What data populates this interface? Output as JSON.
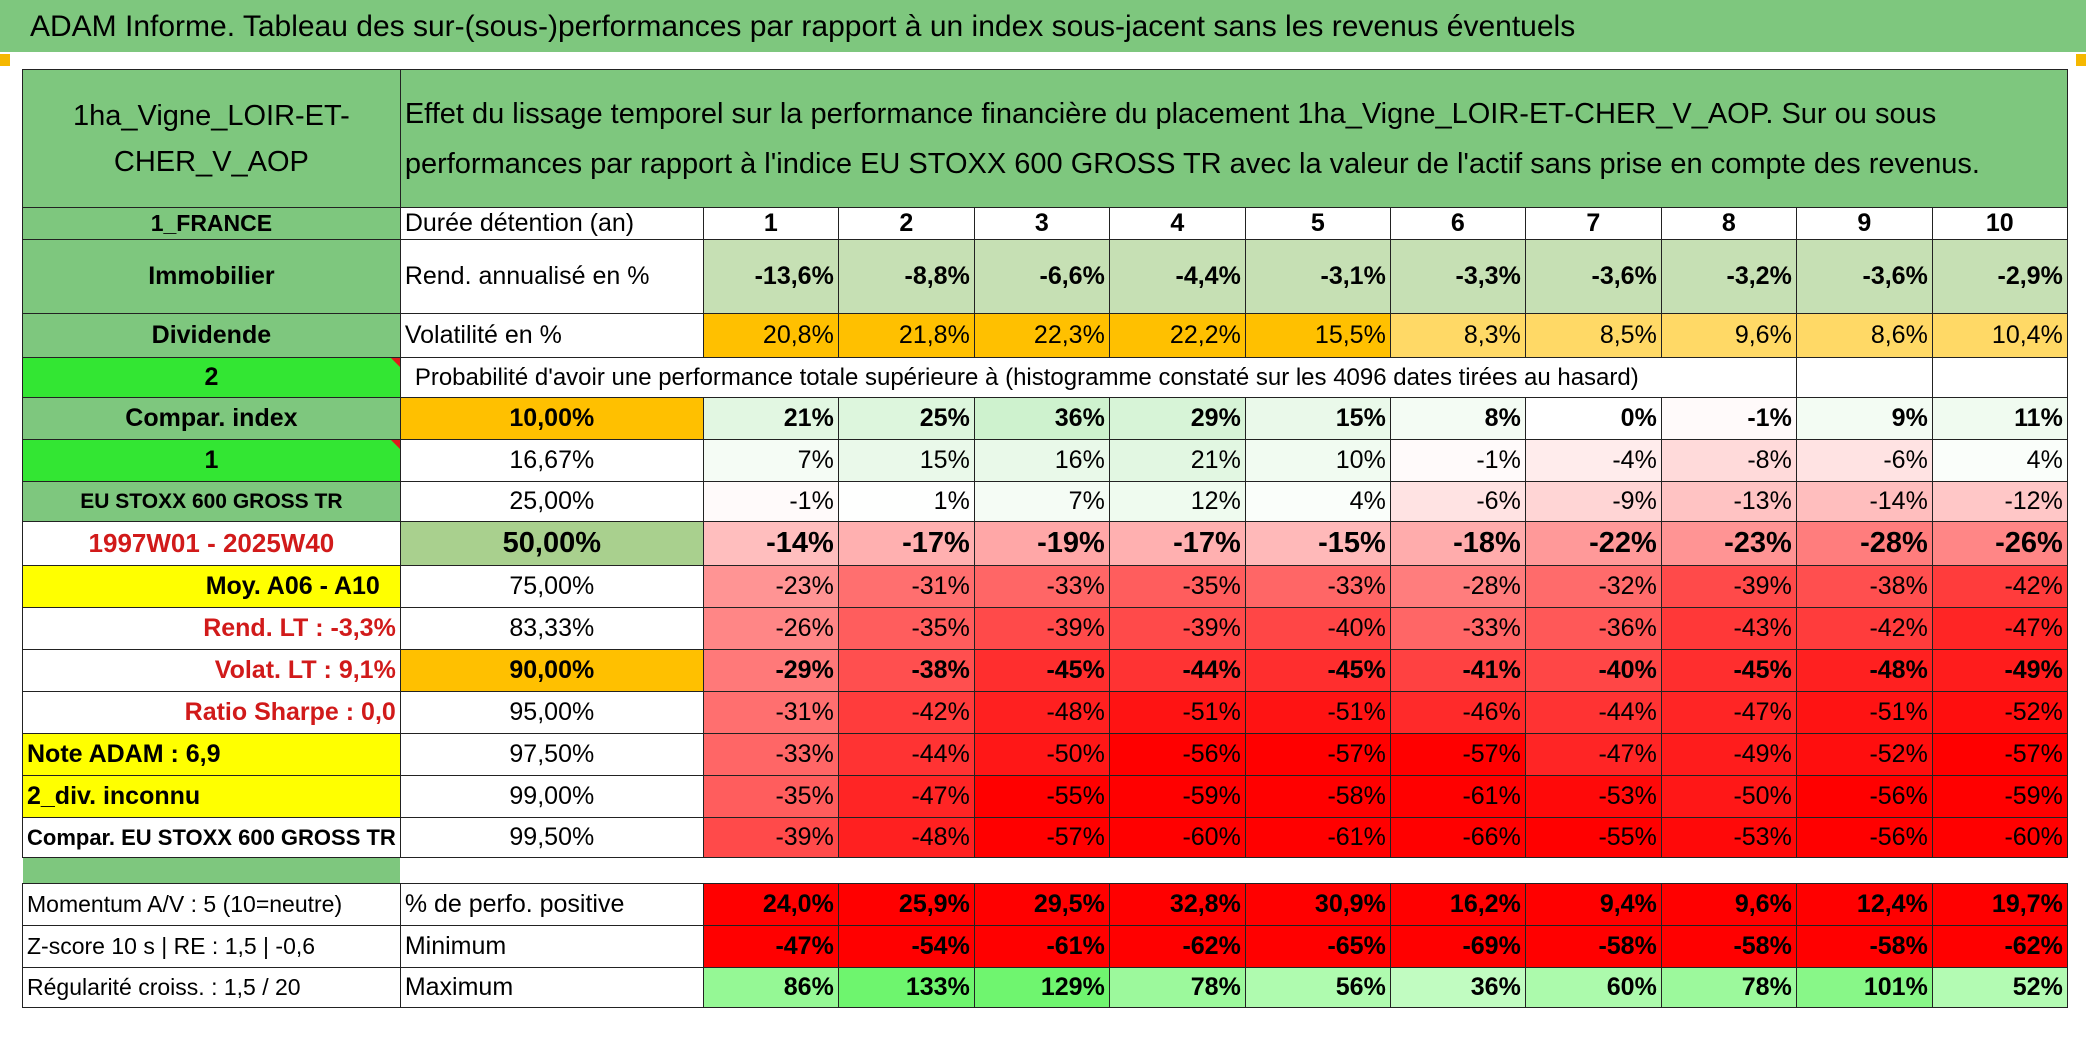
{
  "title": "ADAM Informe. Tableau des sur-(sous-)performances par rapport à un index sous-jacent sans les revenus éventuels",
  "header": {
    "asset": "1ha_Vigne_LOIR-ET-CHER_V_AOP",
    "description": "Effet du lissage temporel sur la performance financière du placement 1ha_Vigne_LOIR-ET-CHER_V_AOP. Sur ou sous performances par rapport à l'indice EU STOXX 600 GROSS TR avec la valeur de l'actif sans prise en compte des revenus."
  },
  "left": {
    "country": "1_FRANCE",
    "category": "Immobilier",
    "income": "Dividende",
    "selector1": "2",
    "compar_index": "Compar. index",
    "selector2": "1",
    "index_name": "EU STOXX 600 GROSS TR",
    "period": "1997W01 - 2025W40",
    "moy": "Moy. A06 - A10",
    "rend_lt": "Rend. LT :   -3,3%",
    "volat_lt": "Volat. LT :   9,1%",
    "sharpe": "Ratio Sharpe :    0,0",
    "note": "Note ADAM : 6,9",
    "div": "2_div. inconnu",
    "compar_full": "Compar. EU STOXX 600 GROSS TR",
    "momentum": "Momentum A/V : 5 (10=neutre)",
    "zscore": "Z-score 10 s | RE : 1,5 | -0,6",
    "regularite": "Régularité croiss. : 1,5 / 20"
  },
  "labels": {
    "duree": "Durée détention (an)",
    "rend": "Rend. annualisé en %",
    "volat": "Volatilité en %",
    "proba": "Probabilité d'avoir une performance totale supérieure à (histogramme constaté sur les 4096 dates tirées au hasard)",
    "positive": "% de perfo. positive",
    "minimum": "Minimum",
    "maximum": "Maximum"
  },
  "years": [
    "1",
    "2",
    "3",
    "4",
    "5",
    "6",
    "7",
    "8",
    "9",
    "10"
  ],
  "rend": [
    "-13,6%",
    "-8,8%",
    "-6,6%",
    "-4,4%",
    "-3,1%",
    "-3,3%",
    "-3,6%",
    "-3,2%",
    "-3,6%",
    "-2,9%"
  ],
  "volat": [
    "20,8%",
    "21,8%",
    "22,3%",
    "22,2%",
    "15,5%",
    "8,3%",
    "8,5%",
    "9,6%",
    "8,6%",
    "10,4%"
  ],
  "prob_rows": [
    {
      "pct": "10,00%",
      "vals": [
        "21%",
        "25%",
        "36%",
        "29%",
        "15%",
        "8%",
        "0%",
        "-1%",
        "9%",
        "11%"
      ]
    },
    {
      "pct": "16,67%",
      "vals": [
        "7%",
        "15%",
        "16%",
        "21%",
        "10%",
        "-1%",
        "-4%",
        "-8%",
        "-6%",
        "4%"
      ]
    },
    {
      "pct": "25,00%",
      "vals": [
        "-1%",
        "1%",
        "7%",
        "12%",
        "4%",
        "-6%",
        "-9%",
        "-13%",
        "-14%",
        "-12%"
      ]
    },
    {
      "pct": "50,00%",
      "vals": [
        "-14%",
        "-17%",
        "-19%",
        "-17%",
        "-15%",
        "-18%",
        "-22%",
        "-23%",
        "-28%",
        "-26%"
      ]
    },
    {
      "pct": "75,00%",
      "vals": [
        "-23%",
        "-31%",
        "-33%",
        "-35%",
        "-33%",
        "-28%",
        "-32%",
        "-39%",
        "-38%",
        "-42%"
      ]
    },
    {
      "pct": "83,33%",
      "vals": [
        "-26%",
        "-35%",
        "-39%",
        "-39%",
        "-40%",
        "-33%",
        "-36%",
        "-43%",
        "-42%",
        "-47%"
      ]
    },
    {
      "pct": "90,00%",
      "vals": [
        "-29%",
        "-38%",
        "-45%",
        "-44%",
        "-45%",
        "-41%",
        "-40%",
        "-45%",
        "-48%",
        "-49%"
      ]
    },
    {
      "pct": "95,00%",
      "vals": [
        "-31%",
        "-42%",
        "-48%",
        "-51%",
        "-51%",
        "-46%",
        "-44%",
        "-47%",
        "-51%",
        "-52%"
      ]
    },
    {
      "pct": "97,50%",
      "vals": [
        "-33%",
        "-44%",
        "-50%",
        "-56%",
        "-57%",
        "-57%",
        "-47%",
        "-49%",
        "-52%",
        "-57%"
      ]
    },
    {
      "pct": "99,00%",
      "vals": [
        "-35%",
        "-47%",
        "-55%",
        "-59%",
        "-58%",
        "-61%",
        "-53%",
        "-50%",
        "-56%",
        "-59%"
      ]
    },
    {
      "pct": "99,50%",
      "vals": [
        "-39%",
        "-48%",
        "-57%",
        "-60%",
        "-61%",
        "-66%",
        "-55%",
        "-53%",
        "-56%",
        "-60%"
      ]
    }
  ],
  "positive": [
    "24,0%",
    "25,9%",
    "29,5%",
    "32,8%",
    "30,9%",
    "16,2%",
    "9,4%",
    "9,6%",
    "12,4%",
    "19,7%"
  ],
  "minimum": [
    "-47%",
    "-54%",
    "-61%",
    "-62%",
    "-65%",
    "-69%",
    "-58%",
    "-58%",
    "-58%",
    "-62%"
  ],
  "maximum": [
    "86%",
    "133%",
    "129%",
    "78%",
    "56%",
    "36%",
    "60%",
    "78%",
    "101%",
    "52%"
  ],
  "colors": {
    "green_label": "#7ec77e",
    "bright_green": "#33e633",
    "orange": "#ffc000",
    "yellow": "#ffff00",
    "red_text": "#d11a1a",
    "red": "#ff0000"
  }
}
